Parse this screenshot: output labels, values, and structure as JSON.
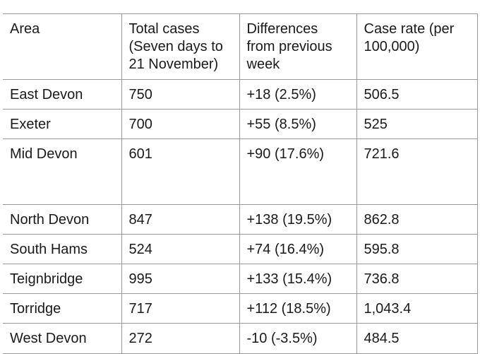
{
  "table": {
    "headers": [
      "Area",
      "Total cases (Seven days to 21 November)",
      "Differences from previous week",
      "Case rate (per 100,000)"
    ],
    "rows": [
      [
        "East Devon",
        "750",
        "+18 (2.5%)",
        "506.5"
      ],
      [
        "Exeter",
        "700",
        "+55 (8.5%)",
        "525"
      ],
      [
        "Mid Devon",
        "601",
        "+90 (17.6%)",
        "721.6"
      ],
      [
        "North Devon",
        "847",
        "+138 (19.5%)",
        "862.8"
      ],
      [
        "South Hams",
        "524",
        "+74 (16.4%)",
        "595.8"
      ],
      [
        "Teignbridge",
        "995",
        "+133 (15.4%)",
        "736.8"
      ],
      [
        "Torridge",
        "717",
        "+112 (18.5%)",
        "1,043.4"
      ],
      [
        "West Devon",
        "272",
        "-10 (-3.5%)",
        "484.5"
      ]
    ]
  }
}
